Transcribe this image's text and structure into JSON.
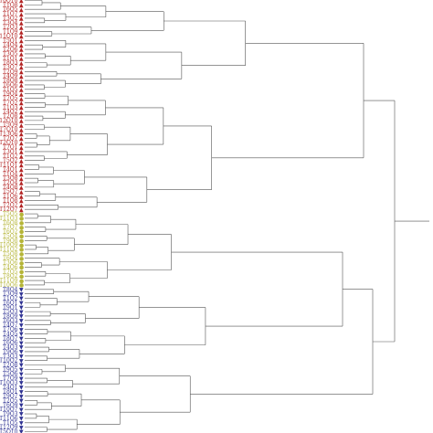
{
  "dendrogram": {
    "groups": [
      {
        "key": "red",
        "color": "#b22222",
        "marker_glyph": "▲",
        "marker_name": "triangle-up",
        "labels": [
          "T10Q10",
          "T1Q8",
          "T6Q5",
          "T1Q7",
          "T3Q2",
          "T3Q4",
          "T2Q3",
          "T1Q9",
          "T11Q10",
          "T5Q1",
          "T4Q4",
          "T2Q6",
          "T3Q5",
          "T1Q1",
          "T8Q3",
          "T3Q7",
          "T2Q9",
          "T4Q9",
          "T8Q8",
          "T6Q6",
          "T1Q5",
          "T9Q4",
          "T7Q5",
          "T7Q2",
          "T1Q3",
          "T4Q2",
          "T2Q8",
          "T12Q10",
          "T5Q9",
          "T7Q10",
          "T13Q6",
          "T2Q7",
          "T2Q10",
          "T7Q1",
          "T3Q1",
          "T1Q2",
          "T5Q2",
          "T11Q1",
          "T4Q1",
          "T1Q4",
          "T3Q8",
          "T2Q4",
          "T4Q8",
          "T5Q7",
          "T1Q6",
          "T1Q8",
          "T2Q2",
          "T12Q7"
        ]
      },
      {
        "key": "olive",
        "color": "#b5b538",
        "marker_glyph": "●",
        "marker_name": "circle",
        "labels": [
          "T5Q5",
          "T11Q3",
          "T6Q8",
          "T7Q7",
          "T6Q2",
          "T5Q4",
          "T9Q8",
          "T10Q9",
          "T11Q2",
          "T5Q8",
          "T6Q4",
          "T3Q6",
          "T4Q6",
          "T7Q5",
          "T8Q2",
          "T11Q9",
          "T10Q6"
        ]
      },
      {
        "key": "blue",
        "color": "#2e3192",
        "marker_glyph": "▼",
        "marker_name": "triangle-down",
        "labels": [
          "T8Q4",
          "T3Q9",
          "T1Q2",
          "T6Q1",
          "T9Q1",
          "T5Q3",
          "T8Q9",
          "T6Q3",
          "T4Q7",
          "T7Q6",
          "T4Q5",
          "T8Q7",
          "T6Q6",
          "T4Q3",
          "T9Q6",
          "T3Q3",
          "T10Q2",
          "T2Q8",
          "T9Q5",
          "T5Q6",
          "T7Q9",
          "T10Q3",
          "T4Q1",
          "T8Q1",
          "T9Q7",
          "T2Q5",
          "T6Q9",
          "T10Q7",
          "T9Q3",
          "T11Q6",
          "T1Q5",
          "T12Q9",
          "T5Q10"
        ]
      }
    ],
    "link_color": "#555555"
  }
}
